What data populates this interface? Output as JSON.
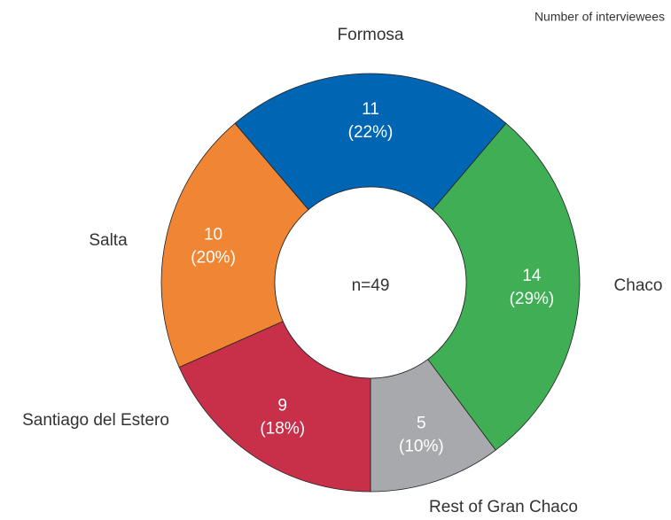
{
  "chart_data": {
    "type": "donut",
    "note": "Number of interviewees",
    "center_label": "n=49",
    "categories": [
      "Formosa",
      "Chaco",
      "Rest of Gran Chaco",
      "Santiago del Estero",
      "Salta"
    ],
    "values": [
      11,
      14,
      5,
      9,
      10
    ],
    "percentages": [
      22,
      29,
      10,
      18,
      20
    ],
    "percentage_labels": [
      "(22%)",
      "(29%)",
      "(10%)",
      "(18%)",
      "(20%)"
    ],
    "colors": [
      "#0066b3",
      "#3fae54",
      "#a7a9ac",
      "#c8304a",
      "#f08533"
    ]
  }
}
